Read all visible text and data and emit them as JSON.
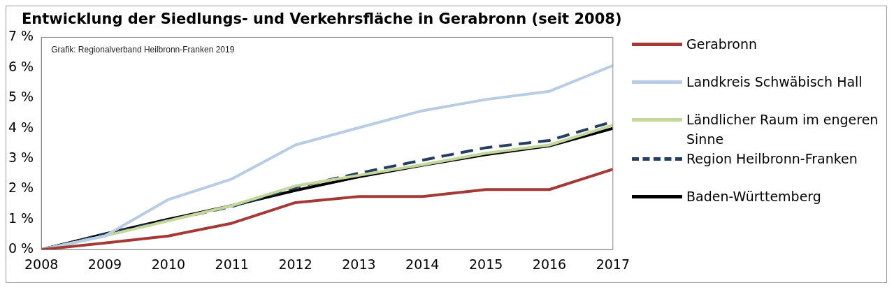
{
  "chart_data": {
    "type": "line",
    "title": "Entwicklung der Siedlungs- und Verkehrsfläche in Gerabronn (seit 2008)",
    "x": [
      2008,
      2009,
      2010,
      2011,
      2012,
      2013,
      2014,
      2015,
      2016,
      2017
    ],
    "series": [
      {
        "name": "Gerabronn",
        "color": "#a33a35",
        "values": [
          0,
          0.22,
          0.45,
          0.87,
          1.55,
          1.75,
          1.75,
          1.98,
          1.98,
          2.65
        ]
      },
      {
        "name": "Landkreis Schwäbisch Hall",
        "color": "#b8cce4",
        "values": [
          0,
          0.45,
          1.65,
          2.33,
          3.45,
          4.02,
          4.58,
          4.95,
          5.22,
          6.07
        ]
      },
      {
        "name": "Ländlicher Raum im engeren Sinne",
        "color": "#c4d79b",
        "values": [
          0,
          0.45,
          0.95,
          1.45,
          2.1,
          2.45,
          2.8,
          3.18,
          3.45,
          4.1
        ]
      },
      {
        "name": "Region Heilbronn-Franken",
        "color": "#243f60",
        "line_style": "dashed",
        "values": [
          0,
          0.5,
          0.97,
          1.42,
          2.05,
          2.52,
          2.95,
          3.36,
          3.6,
          4.22
        ]
      },
      {
        "name": "Baden-Württemberg",
        "color": "#000000",
        "values": [
          0,
          0.52,
          1.0,
          1.45,
          1.95,
          2.4,
          2.78,
          3.13,
          3.42,
          4.0
        ]
      }
    ],
    "xlim": [
      2008,
      2017
    ],
    "xticks": [
      2008,
      2009,
      2010,
      2011,
      2012,
      2013,
      2014,
      2015,
      2016,
      2017
    ],
    "ylim": [
      0,
      7
    ],
    "yticks": [
      {
        "value": 0,
        "label": "0 %"
      },
      {
        "value": 1,
        "label": "1 %"
      },
      {
        "value": 2,
        "label": "2 %"
      },
      {
        "value": 3,
        "label": "3 %"
      },
      {
        "value": 4,
        "label": "4 %"
      },
      {
        "value": 5,
        "label": "5 %"
      },
      {
        "value": 6,
        "label": "6 %"
      },
      {
        "value": 7,
        "label": "7 %"
      }
    ],
    "annotations": [
      "Grafik: Regionalverband Heilbronn-Franken 2019"
    ],
    "grid": false,
    "legend": "right",
    "marker": "none",
    "line_style": "solid"
  }
}
